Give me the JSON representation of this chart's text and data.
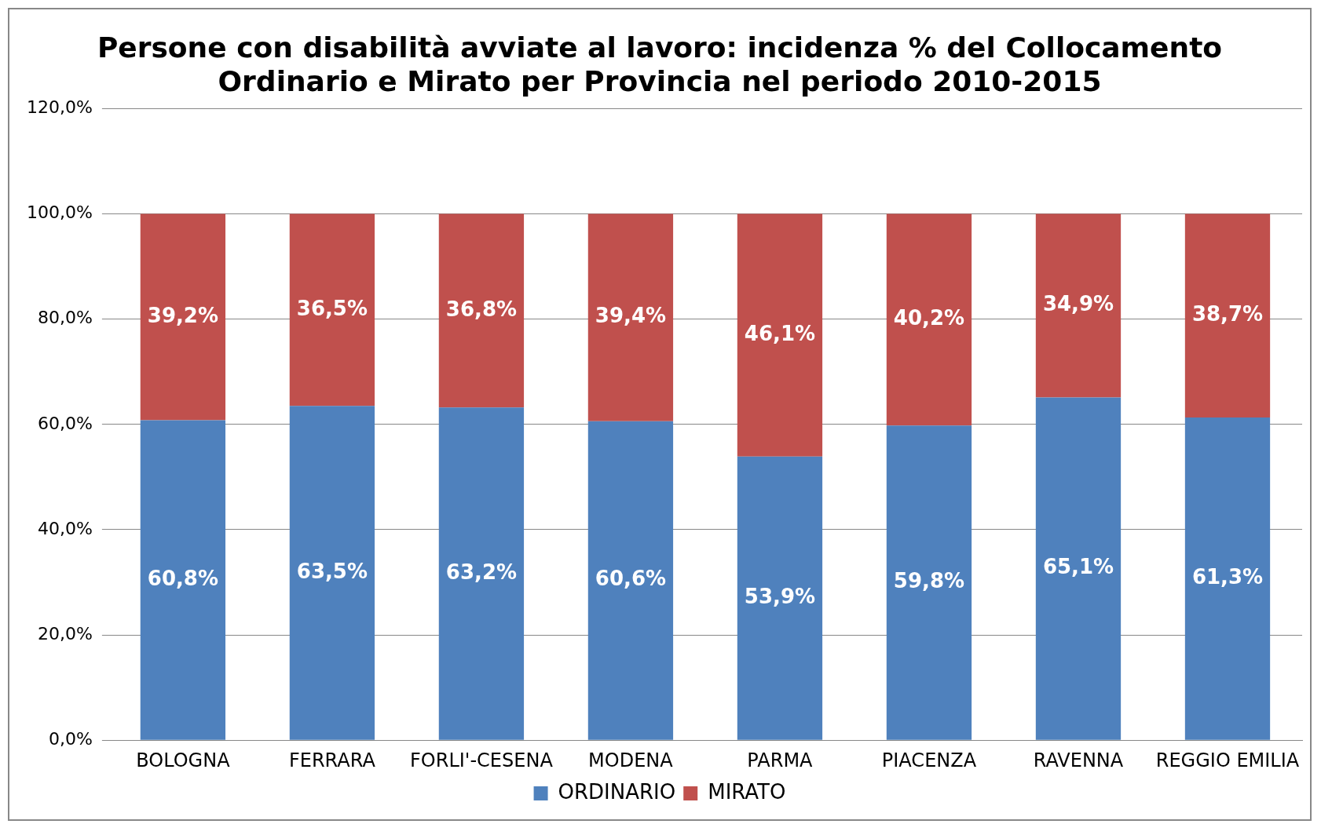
{
  "chart_data": {
    "type": "bar",
    "title": "Persone con disabilità avviate al lavoro: incidenza % del Collocamento\nOrdinario e Mirato per Provincia nel periodo 2010-2015",
    "categories": [
      "BOLOGNA",
      "FERRARA",
      "FORLI'-CESENA",
      "MODENA",
      "PARMA",
      "PIACENZA",
      "RAVENNA",
      "REGGIO EMILIA"
    ],
    "series": [
      {
        "name": "ORDINARIO",
        "color": "#4f81bd",
        "values": [
          60.8,
          63.5,
          63.2,
          60.6,
          53.9,
          59.8,
          65.1,
          61.3
        ],
        "value_labels": [
          "60,8%",
          "63,5%",
          "63,2%",
          "60,6%",
          "53,9%",
          "59,8%",
          "65,1%",
          "61,3%"
        ]
      },
      {
        "name": "MIRATO",
        "color": "#c0504d",
        "values": [
          39.2,
          36.5,
          36.8,
          39.4,
          46.1,
          40.2,
          34.9,
          38.7
        ],
        "value_labels": [
          "39,2%",
          "36,5%",
          "36,8%",
          "39,4%",
          "46,1%",
          "40,2%",
          "34,9%",
          "38,7%"
        ]
      }
    ],
    "stacked": true,
    "ylim": [
      0,
      120
    ],
    "yticks": [
      {
        "value": 0,
        "label": "0,0%"
      },
      {
        "value": 20,
        "label": "20,0%"
      },
      {
        "value": 40,
        "label": "40,0%"
      },
      {
        "value": 60,
        "label": "60,0%"
      },
      {
        "value": 80,
        "label": "80,0%"
      },
      {
        "value": 100,
        "label": "100,0%"
      },
      {
        "value": 120,
        "label": "120,0%"
      }
    ],
    "grid": "y",
    "legend": "bottom"
  }
}
